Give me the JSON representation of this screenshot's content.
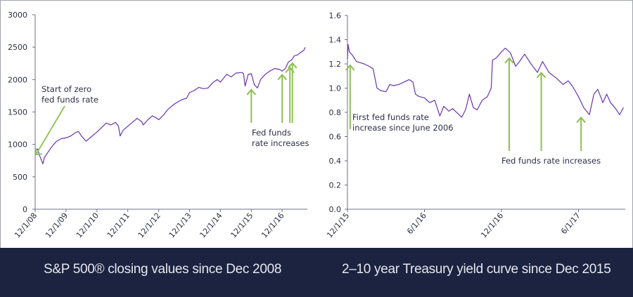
{
  "colors": {
    "line": "#6a33b0",
    "arrow": "#8cc150",
    "axis": "#6e7285",
    "footer_bg": "#1b2340",
    "caption": "#e6e8ee"
  },
  "captions": {
    "left": "S&P 500® closing values since Dec 2008",
    "right": "2–10 year Treasury yield curve since Dec 2015"
  },
  "chart_data": [
    {
      "type": "line",
      "title": "S&P 500® closing values since Dec 2008",
      "xlabel": "",
      "ylabel": "",
      "ylim": [
        0,
        3000
      ],
      "yticks": [
        "0",
        "500",
        "1000",
        "1500",
        "2000",
        "2500",
        "3000"
      ],
      "ytick_values": [
        0,
        500,
        1000,
        1500,
        2000,
        2500,
        3000
      ],
      "xticks": [
        "12/1/08",
        "12/1/09",
        "12/1/10",
        "12/1/11",
        "12/1/12",
        "12/1/13",
        "12/1/14",
        "12/1/15",
        "12/1/16"
      ],
      "x_unit": "years since 12/1/08",
      "xlim": [
        0,
        8.8
      ],
      "grid": false,
      "series": [
        {
          "name": "S&P 500 close",
          "x": [
            0,
            0.08,
            0.15,
            0.25,
            0.3,
            0.4,
            0.5,
            0.6,
            0.7,
            0.85,
            1.0,
            1.15,
            1.3,
            1.4,
            1.5,
            1.65,
            1.8,
            2.0,
            2.15,
            2.3,
            2.45,
            2.6,
            2.7,
            2.75,
            2.85,
            3.0,
            3.15,
            3.3,
            3.45,
            3.5,
            3.65,
            3.8,
            3.95,
            4.0,
            4.15,
            4.3,
            4.5,
            4.6,
            4.75,
            4.9,
            5.0,
            5.15,
            5.3,
            5.45,
            5.6,
            5.75,
            5.9,
            6.0,
            6.2,
            6.35,
            6.5,
            6.7,
            6.75,
            6.8,
            6.9,
            7.0,
            7.1,
            7.2,
            7.3,
            7.45,
            7.6,
            7.75,
            7.9,
            8.0,
            8.1,
            8.2,
            8.3,
            8.4,
            8.5,
            8.6,
            8.7,
            8.75
          ],
          "values": [
            900,
            930,
            820,
            700,
            800,
            870,
            940,
            1000,
            1050,
            1090,
            1100,
            1130,
            1180,
            1200,
            1130,
            1050,
            1110,
            1190,
            1260,
            1330,
            1300,
            1340,
            1280,
            1130,
            1220,
            1280,
            1340,
            1400,
            1350,
            1300,
            1380,
            1440,
            1400,
            1380,
            1450,
            1540,
            1620,
            1650,
            1690,
            1710,
            1800,
            1830,
            1880,
            1860,
            1870,
            1950,
            2000,
            1960,
            2080,
            2040,
            2100,
            2110,
            2090,
            1900,
            2080,
            2090,
            1920,
            1870,
            2000,
            2080,
            2130,
            2170,
            2160,
            2130,
            2170,
            2270,
            2300,
            2370,
            2380,
            2420,
            2450,
            2500
          ]
        }
      ],
      "annotations": [
        {
          "text_lines": [
            "Start of zero",
            "fed funds rate"
          ],
          "arrow_at": [
            0,
            950
          ]
        },
        {
          "text_lines": [
            "Fed funds",
            "rate increases"
          ],
          "arrows_at": [
            [
              7.0,
              1930
            ],
            [
              8.0,
              2160
            ],
            [
              8.25,
              2270
            ],
            [
              8.33,
              2340
            ]
          ]
        }
      ]
    },
    {
      "type": "line",
      "title": "2–10 year Treasury yield curve since Dec 2015",
      "xlabel": "",
      "ylabel": "",
      "ylim": [
        0,
        1.6
      ],
      "yticks": [
        "0.0",
        "0.2",
        "0.4",
        "0.6",
        "0.8",
        "1.0",
        "1.2",
        "1.4",
        "1.6"
      ],
      "ytick_values": [
        0,
        0.2,
        0.4,
        0.6,
        0.8,
        1.0,
        1.2,
        1.4,
        1.6
      ],
      "xticks": [
        "12/1/15",
        "6/1/16",
        "12/1/16",
        "6/1/17"
      ],
      "xtick_values": [
        0,
        6,
        12,
        18
      ],
      "x_unit": "months since 12/1/15",
      "xlim": [
        0,
        21.6
      ],
      "grid": false,
      "series": [
        {
          "name": "2–10 year yield curve",
          "x": [
            0,
            0.05,
            0.15,
            0.4,
            0.7,
            1.0,
            1.3,
            1.7,
            2.0,
            2.15,
            2.3,
            2.6,
            3.0,
            3.3,
            3.6,
            4.0,
            4.4,
            4.8,
            5.1,
            5.3,
            5.6,
            6.0,
            6.4,
            6.8,
            7.2,
            7.5,
            7.9,
            8.2,
            8.6,
            8.9,
            9.2,
            9.5,
            9.8,
            10.1,
            10.5,
            10.9,
            11.2,
            11.3,
            11.6,
            12.0,
            12.3,
            12.7,
            13.1,
            13.4,
            13.8,
            14.3,
            14.8,
            15.2,
            15.7,
            16.3,
            16.8,
            17.2,
            17.5,
            18.0,
            18.4,
            18.7,
            18.85,
            19.2,
            19.5,
            19.9,
            20.2,
            20.5,
            20.9,
            21.2,
            21.5
          ],
          "values": [
            1.24,
            1.36,
            1.3,
            1.27,
            1.22,
            1.21,
            1.2,
            1.18,
            1.16,
            1.08,
            1.0,
            0.98,
            0.97,
            1.03,
            1.02,
            1.03,
            1.05,
            1.07,
            1.05,
            0.95,
            0.93,
            0.92,
            0.88,
            0.9,
            0.77,
            0.85,
            0.81,
            0.83,
            0.79,
            0.76,
            0.82,
            0.95,
            0.84,
            0.82,
            0.9,
            0.93,
            1.0,
            1.23,
            1.25,
            1.3,
            1.33,
            1.29,
            1.18,
            1.22,
            1.28,
            1.2,
            1.13,
            1.22,
            1.13,
            1.08,
            1.03,
            1.06,
            1.02,
            0.93,
            0.84,
            0.8,
            0.78,
            0.95,
            0.99,
            0.88,
            0.95,
            0.88,
            0.83,
            0.78,
            0.84
          ]
        }
      ],
      "annotations": [
        {
          "text_lines": [
            "First fed funds rate",
            "increase since June 2006"
          ],
          "arrow_at": [
            0.1,
            1.2
          ]
        },
        {
          "text_lines": [
            "Fed funds rate increases"
          ],
          "arrows_at": [
            [
              12.6,
              1.27
            ],
            [
              15.1,
              1.15
            ],
            [
              18.2,
              0.78
            ]
          ]
        }
      ]
    }
  ]
}
